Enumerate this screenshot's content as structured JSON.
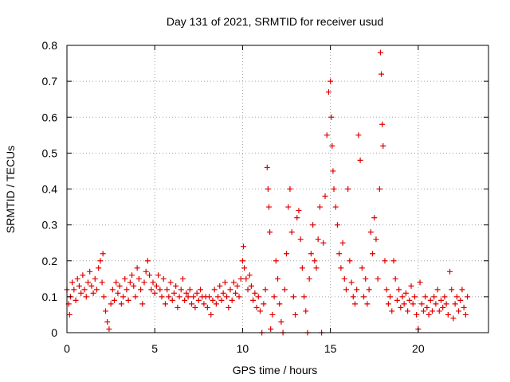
{
  "chart_data": {
    "type": "scatter",
    "title": "Day 131 of 2021, SRMTID for receiver usud",
    "xlabel": "GPS time / hours",
    "ylabel": "SRMTID / TECUs",
    "xlim": [
      0,
      24
    ],
    "ylim": [
      0,
      0.8
    ],
    "xticks": [
      "0",
      "5",
      "10",
      "15",
      "20"
    ],
    "yticks": [
      "0",
      "0.1",
      "0.2",
      "0.3",
      "0.4",
      "0.5",
      "0.6",
      "0.7",
      "0.8"
    ],
    "grid": true,
    "marker": "plus",
    "color": "#e00000",
    "series": [
      {
        "name": "SRMTID",
        "points": [
          [
            0.0,
            0.12
          ],
          [
            0.1,
            0.08
          ],
          [
            0.15,
            0.05
          ],
          [
            0.2,
            0.1
          ],
          [
            0.3,
            0.14
          ],
          [
            0.4,
            0.12
          ],
          [
            0.5,
            0.09
          ],
          [
            0.6,
            0.15
          ],
          [
            0.7,
            0.13
          ],
          [
            0.8,
            0.11
          ],
          [
            0.9,
            0.16
          ],
          [
            1.0,
            0.12
          ],
          [
            1.1,
            0.1
          ],
          [
            1.2,
            0.14
          ],
          [
            1.3,
            0.17
          ],
          [
            1.4,
            0.13
          ],
          [
            1.5,
            0.11
          ],
          [
            1.6,
            0.15
          ],
          [
            1.7,
            0.12
          ],
          [
            1.8,
            0.18
          ],
          [
            1.9,
            0.2
          ],
          [
            2.0,
            0.14
          ],
          [
            2.05,
            0.22
          ],
          [
            2.1,
            0.1
          ],
          [
            2.2,
            0.06
          ],
          [
            2.3,
            0.03
          ],
          [
            2.4,
            0.01
          ],
          [
            2.5,
            0.08
          ],
          [
            2.6,
            0.12
          ],
          [
            2.7,
            0.09
          ],
          [
            2.8,
            0.14
          ],
          [
            2.9,
            0.11
          ],
          [
            3.0,
            0.13
          ],
          [
            3.1,
            0.08
          ],
          [
            3.2,
            0.1
          ],
          [
            3.3,
            0.15
          ],
          [
            3.4,
            0.12
          ],
          [
            3.5,
            0.09
          ],
          [
            3.6,
            0.14
          ],
          [
            3.7,
            0.16
          ],
          [
            3.8,
            0.13
          ],
          [
            3.9,
            0.1
          ],
          [
            4.0,
            0.18
          ],
          [
            4.1,
            0.15
          ],
          [
            4.2,
            0.12
          ],
          [
            4.3,
            0.08
          ],
          [
            4.4,
            0.14
          ],
          [
            4.5,
            0.17
          ],
          [
            4.6,
            0.2
          ],
          [
            4.7,
            0.16
          ],
          [
            4.8,
            0.12
          ],
          [
            4.9,
            0.14
          ],
          [
            5.0,
            0.11
          ],
          [
            5.1,
            0.13
          ],
          [
            5.2,
            0.16
          ],
          [
            5.3,
            0.12
          ],
          [
            5.4,
            0.1
          ],
          [
            5.5,
            0.15
          ],
          [
            5.6,
            0.08
          ],
          [
            5.7,
            0.12
          ],
          [
            5.8,
            0.1
          ],
          [
            5.9,
            0.14
          ],
          [
            6.0,
            0.09
          ],
          [
            6.1,
            0.11
          ],
          [
            6.2,
            0.13
          ],
          [
            6.3,
            0.07
          ],
          [
            6.4,
            0.1
          ],
          [
            6.5,
            0.12
          ],
          [
            6.6,
            0.15
          ],
          [
            6.7,
            0.09
          ],
          [
            6.8,
            0.11
          ],
          [
            6.9,
            0.1
          ],
          [
            7.0,
            0.12
          ],
          [
            7.1,
            0.08
          ],
          [
            7.2,
            0.1
          ],
          [
            7.3,
            0.07
          ],
          [
            7.4,
            0.11
          ],
          [
            7.5,
            0.09
          ],
          [
            7.6,
            0.12
          ],
          [
            7.7,
            0.1
          ],
          [
            7.8,
            0.08
          ],
          [
            7.9,
            0.1
          ],
          [
            8.0,
            0.07
          ],
          [
            8.1,
            0.1
          ],
          [
            8.2,
            0.05
          ],
          [
            8.3,
            0.09
          ],
          [
            8.4,
            0.12
          ],
          [
            8.5,
            0.08
          ],
          [
            8.6,
            0.1
          ],
          [
            8.7,
            0.13
          ],
          [
            8.8,
            0.09
          ],
          [
            8.9,
            0.11
          ],
          [
            9.0,
            0.14
          ],
          [
            9.1,
            0.1
          ],
          [
            9.2,
            0.07
          ],
          [
            9.3,
            0.12
          ],
          [
            9.4,
            0.09
          ],
          [
            9.5,
            0.14
          ],
          [
            9.6,
            0.11
          ],
          [
            9.7,
            0.13
          ],
          [
            9.8,
            0.1
          ],
          [
            9.9,
            0.15
          ],
          [
            10.0,
            0.2
          ],
          [
            10.05,
            0.24
          ],
          [
            10.1,
            0.18
          ],
          [
            10.2,
            0.15
          ],
          [
            10.3,
            0.12
          ],
          [
            10.4,
            0.16
          ],
          [
            10.5,
            0.13
          ],
          [
            10.6,
            0.09
          ],
          [
            10.7,
            0.11
          ],
          [
            10.8,
            0.07
          ],
          [
            10.9,
            0.1
          ],
          [
            11.0,
            0.06
          ],
          [
            11.1,
            0.0
          ],
          [
            11.2,
            0.08
          ],
          [
            11.3,
            0.12
          ],
          [
            11.4,
            0.46
          ],
          [
            11.45,
            0.4
          ],
          [
            11.5,
            0.35
          ],
          [
            11.55,
            0.28
          ],
          [
            11.6,
            0.01
          ],
          [
            11.7,
            0.05
          ],
          [
            11.8,
            0.1
          ],
          [
            11.9,
            0.2
          ],
          [
            12.0,
            0.15
          ],
          [
            12.1,
            0.08
          ],
          [
            12.2,
            0.03
          ],
          [
            12.3,
            0.0
          ],
          [
            12.4,
            0.12
          ],
          [
            12.5,
            0.22
          ],
          [
            12.6,
            0.35
          ],
          [
            12.7,
            0.4
          ],
          [
            12.8,
            0.28
          ],
          [
            12.9,
            0.1
          ],
          [
            13.0,
            0.05
          ],
          [
            13.1,
            0.32
          ],
          [
            13.2,
            0.34
          ],
          [
            13.3,
            0.26
          ],
          [
            13.4,
            0.18
          ],
          [
            13.5,
            0.1
          ],
          [
            13.6,
            0.06
          ],
          [
            13.7,
            0.0
          ],
          [
            13.8,
            0.15
          ],
          [
            13.9,
            0.22
          ],
          [
            14.0,
            0.3
          ],
          [
            14.1,
            0.2
          ],
          [
            14.2,
            0.18
          ],
          [
            14.3,
            0.26
          ],
          [
            14.4,
            0.35
          ],
          [
            14.5,
            0.0
          ],
          [
            14.6,
            0.25
          ],
          [
            14.7,
            0.38
          ],
          [
            14.8,
            0.55
          ],
          [
            14.9,
            0.67
          ],
          [
            15.0,
            0.7
          ],
          [
            15.05,
            0.6
          ],
          [
            15.1,
            0.52
          ],
          [
            15.15,
            0.45
          ],
          [
            15.2,
            0.4
          ],
          [
            15.3,
            0.35
          ],
          [
            15.4,
            0.3
          ],
          [
            15.5,
            0.22
          ],
          [
            15.6,
            0.18
          ],
          [
            15.7,
            0.25
          ],
          [
            15.8,
            0.15
          ],
          [
            15.9,
            0.12
          ],
          [
            16.0,
            0.4
          ],
          [
            16.1,
            0.2
          ],
          [
            16.2,
            0.14
          ],
          [
            16.3,
            0.1
          ],
          [
            16.4,
            0.08
          ],
          [
            16.5,
            0.12
          ],
          [
            16.6,
            0.55
          ],
          [
            16.7,
            0.48
          ],
          [
            16.8,
            0.18
          ],
          [
            16.9,
            0.1
          ],
          [
            17.0,
            0.15
          ],
          [
            17.1,
            0.08
          ],
          [
            17.2,
            0.12
          ],
          [
            17.3,
            0.28
          ],
          [
            17.4,
            0.22
          ],
          [
            17.5,
            0.32
          ],
          [
            17.6,
            0.26
          ],
          [
            17.7,
            0.15
          ],
          [
            17.8,
            0.4
          ],
          [
            17.85,
            0.78
          ],
          [
            17.9,
            0.72
          ],
          [
            17.95,
            0.58
          ],
          [
            18.0,
            0.52
          ],
          [
            18.1,
            0.2
          ],
          [
            18.2,
            0.12
          ],
          [
            18.3,
            0.08
          ],
          [
            18.4,
            0.1
          ],
          [
            18.5,
            0.06
          ],
          [
            18.6,
            0.2
          ],
          [
            18.7,
            0.15
          ],
          [
            18.8,
            0.09
          ],
          [
            18.9,
            0.12
          ],
          [
            19.0,
            0.07
          ],
          [
            19.1,
            0.1
          ],
          [
            19.2,
            0.08
          ],
          [
            19.3,
            0.11
          ],
          [
            19.4,
            0.06
          ],
          [
            19.5,
            0.09
          ],
          [
            19.6,
            0.13
          ],
          [
            19.7,
            0.08
          ],
          [
            19.8,
            0.1
          ],
          [
            19.9,
            0.05
          ],
          [
            20.0,
            0.01
          ],
          [
            20.1,
            0.14
          ],
          [
            20.2,
            0.08
          ],
          [
            20.3,
            0.06
          ],
          [
            20.4,
            0.1
          ],
          [
            20.5,
            0.07
          ],
          [
            20.6,
            0.05
          ],
          [
            20.7,
            0.09
          ],
          [
            20.8,
            0.06
          ],
          [
            20.9,
            0.1
          ],
          [
            21.0,
            0.08
          ],
          [
            21.1,
            0.12
          ],
          [
            21.2,
            0.06
          ],
          [
            21.3,
            0.09
          ],
          [
            21.4,
            0.07
          ],
          [
            21.5,
            0.1
          ],
          [
            21.6,
            0.08
          ],
          [
            21.7,
            0.05
          ],
          [
            21.8,
            0.17
          ],
          [
            21.9,
            0.12
          ],
          [
            22.0,
            0.04
          ],
          [
            22.1,
            0.08
          ],
          [
            22.2,
            0.1
          ],
          [
            22.3,
            0.06
          ],
          [
            22.4,
            0.09
          ],
          [
            22.5,
            0.12
          ],
          [
            22.6,
            0.07
          ],
          [
            22.7,
            0.05
          ],
          [
            22.8,
            0.1
          ]
        ]
      }
    ]
  }
}
